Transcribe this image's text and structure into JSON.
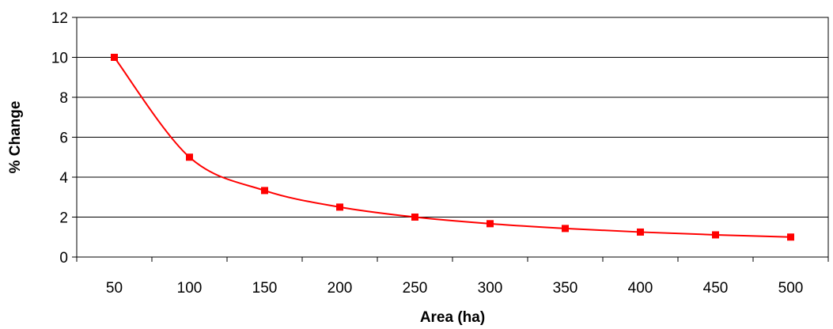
{
  "chart_data": {
    "type": "line",
    "title": "",
    "xlabel": "Area (ha)",
    "ylabel": "% Change",
    "categories": [
      "50",
      "100",
      "150",
      "200",
      "250",
      "300",
      "350",
      "400",
      "450",
      "500"
    ],
    "series": [
      {
        "values": [
          10,
          5,
          3.33,
          2.5,
          2,
          1.67,
          1.43,
          1.25,
          1.11,
          1
        ],
        "color": "#ff0000",
        "marker": "square",
        "smooth": true
      }
    ],
    "ylim": [
      0,
      12
    ],
    "yticks": [
      0,
      2,
      4,
      6,
      8,
      10,
      12
    ],
    "grid": "horizontal",
    "legend": "none"
  }
}
